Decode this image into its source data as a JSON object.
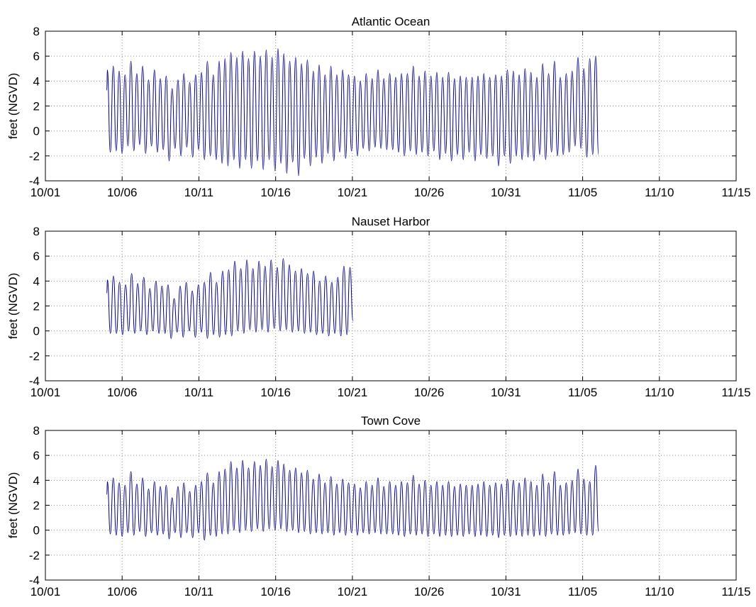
{
  "figure": {
    "background": "#ffffff",
    "line_color": "#000080",
    "grid_color": "#8c8c8c"
  },
  "chart_data": [
    {
      "type": "line",
      "title": "Atlantic Ocean",
      "xlabel": "",
      "ylabel": "feet (NGVD)",
      "x_ticks": [
        "10/01",
        "10/06",
        "10/11",
        "10/16",
        "10/21",
        "10/26",
        "10/31",
        "11/05",
        "11/10",
        "11/15"
      ],
      "y_ticks": [
        "8",
        "6",
        "4",
        "2",
        "0",
        "-2",
        "-4"
      ],
      "xlim": [
        "10/01",
        "11/15"
      ],
      "ylim": [
        -4,
        8
      ],
      "grid": true,
      "legend": "none",
      "series": [
        {
          "x_start": "10/05 00:00",
          "x_end": "11/06 00:00",
          "tide_period_hours": 12.42,
          "highs": [
            4.9,
            5.2,
            4.8,
            4.5,
            5.6,
            4.6,
            5.2,
            4.1,
            4.9,
            4.2,
            4.4,
            3.4,
            4.1,
            4.6,
            3.9,
            4.5,
            4.7,
            5.6,
            4.5,
            5.6,
            5.8,
            6.3,
            5.9,
            6.4,
            5.8,
            6.4,
            6.0,
            6.5,
            5.9,
            6.6,
            6.2,
            5.6,
            5.9,
            5.4,
            5.7,
            4.8,
            5.3,
            4.5,
            5.2,
            4.5,
            4.9,
            4.5,
            4.4,
            4.0,
            4.6,
            4.2,
            4.9,
            4.2,
            4.6,
            4.3,
            4.6,
            4.6,
            5.2,
            4.4,
            4.8,
            4.4,
            4.7,
            4.3,
            4.7,
            4.2,
            4.4,
            4.3,
            4.3,
            4.4,
            4.6,
            4.3,
            4.5,
            4.4,
            4.9,
            4.8,
            4.5,
            5.0,
            4.7,
            4.3,
            5.4,
            4.6,
            5.6,
            4.3,
            4.6,
            4.8,
            5.9,
            5.0,
            5.8,
            6.0
          ],
          "lows": [
            -1.7,
            -1.6,
            -1.8,
            -1.2,
            -1.6,
            -1.1,
            -1.8,
            -1.2,
            -1.7,
            -1.5,
            -2.4,
            -1.4,
            -2.0,
            -1.3,
            -2.1,
            -1.5,
            -2.3,
            -2.0,
            -2.3,
            -2.6,
            -2.8,
            -2.3,
            -3.0,
            -2.3,
            -3.0,
            -2.4,
            -3.1,
            -2.3,
            -3.2,
            -2.6,
            -3.4,
            -2.5,
            -3.6,
            -2.2,
            -2.8,
            -2.1,
            -2.6,
            -1.8,
            -2.4,
            -1.7,
            -2.2,
            -1.6,
            -2.0,
            -1.4,
            -1.6,
            -1.3,
            -1.4,
            -1.5,
            -1.5,
            -1.7,
            -2.0,
            -1.6,
            -1.9,
            -1.7,
            -2.0,
            -1.6,
            -2.3,
            -1.8,
            -2.4,
            -1.9,
            -2.3,
            -1.7,
            -2.4,
            -1.9,
            -2.2,
            -2.0,
            -2.8,
            -2.0,
            -2.6,
            -2.0,
            -2.3,
            -2.1,
            -2.4,
            -1.9,
            -2.3,
            -1.7,
            -2.0,
            -1.9,
            -1.7,
            -1.2,
            -1.4,
            -2.1,
            -1.9,
            -1.9
          ]
        }
      ]
    },
    {
      "type": "line",
      "title": "Nauset Harbor",
      "xlabel": "",
      "ylabel": "feet (NGVD)",
      "x_ticks": [
        "10/01",
        "10/06",
        "10/11",
        "10/16",
        "10/21",
        "10/26",
        "10/31",
        "11/05",
        "11/10",
        "11/15"
      ],
      "y_ticks": [
        "8",
        "6",
        "4",
        "2",
        "0",
        "-2",
        "-4"
      ],
      "xlim": [
        "10/01",
        "11/15"
      ],
      "ylim": [
        -4,
        8
      ],
      "grid": true,
      "legend": "none",
      "series": [
        {
          "x_start": "10/05 00:00",
          "x_end": "10/21 00:00",
          "tide_period_hours": 12.42,
          "highs": [
            4.1,
            4.4,
            3.9,
            3.7,
            4.6,
            3.8,
            4.3,
            3.4,
            4.0,
            3.6,
            3.7,
            2.6,
            3.6,
            3.9,
            3.2,
            3.7,
            3.9,
            4.7,
            3.9,
            4.8,
            4.9,
            5.6,
            5.0,
            5.7,
            5.0,
            5.6,
            5.2,
            5.7,
            5.1,
            5.8,
            5.3,
            4.8,
            5.0,
            4.6,
            4.8,
            4.0,
            4.4,
            3.9,
            4.3,
            5.2,
            5.1
          ],
          "lows": [
            -0.2,
            -0.2,
            -0.3,
            0.0,
            -0.2,
            0.0,
            -0.3,
            0.0,
            -0.2,
            -0.2,
            -0.6,
            -0.1,
            -0.5,
            0.0,
            -0.5,
            -0.1,
            -0.6,
            -0.3,
            -0.5,
            -0.3,
            -0.4,
            0.0,
            -0.2,
            0.1,
            -0.1,
            0.1,
            -0.1,
            0.2,
            0.0,
            0.1,
            -0.1,
            0.0,
            -0.2,
            -0.1,
            -0.3,
            -0.2,
            -0.4,
            -0.2,
            -0.4,
            -0.3,
            0.8
          ]
        }
      ]
    },
    {
      "type": "line",
      "title": "Town Cove",
      "xlabel": "",
      "ylabel": "feet (NGVD)",
      "x_ticks": [
        "10/01",
        "10/06",
        "10/11",
        "10/16",
        "10/21",
        "10/26",
        "10/31",
        "11/05",
        "11/10",
        "11/15"
      ],
      "y_ticks": [
        "8",
        "6",
        "4",
        "2",
        "0",
        "-2",
        "-4"
      ],
      "xlim": [
        "10/01",
        "11/15"
      ],
      "ylim": [
        -4,
        8
      ],
      "grid": true,
      "legend": "none",
      "series": [
        {
          "x_start": "10/05 00:00",
          "x_end": "11/06 00:00",
          "tide_period_hours": 12.42,
          "highs": [
            3.9,
            4.2,
            3.8,
            3.6,
            4.7,
            3.7,
            4.2,
            3.3,
            3.9,
            3.5,
            3.6,
            2.6,
            3.5,
            3.8,
            3.1,
            3.6,
            3.9,
            4.6,
            3.8,
            4.7,
            4.9,
            5.5,
            5.0,
            5.6,
            5.0,
            5.5,
            5.2,
            5.7,
            5.1,
            5.6,
            5.3,
            4.8,
            5.0,
            4.6,
            4.8,
            4.1,
            4.5,
            3.8,
            4.3,
            3.7,
            4.1,
            3.8,
            3.7,
            3.4,
            3.9,
            3.6,
            4.2,
            3.5,
            3.9,
            3.6,
            3.9,
            3.8,
            4.4,
            3.7,
            4.0,
            3.6,
            3.9,
            3.6,
            3.9,
            3.5,
            3.7,
            3.6,
            3.6,
            3.7,
            3.9,
            3.6,
            3.8,
            3.7,
            4.1,
            4.0,
            3.8,
            4.2,
            3.9,
            3.6,
            4.5,
            3.8,
            4.7,
            3.6,
            3.8,
            4.0,
            4.9,
            4.1,
            3.9,
            5.2
          ],
          "lows": [
            -0.3,
            -0.4,
            -0.5,
            -0.2,
            -0.4,
            -0.1,
            -0.5,
            -0.2,
            -0.4,
            -0.3,
            -0.7,
            -0.2,
            -0.6,
            -0.2,
            -0.6,
            -0.2,
            -0.8,
            -0.4,
            -0.5,
            -0.3,
            -0.3,
            0.0,
            -0.2,
            0.0,
            -0.1,
            0.1,
            -0.1,
            0.1,
            0.0,
            0.1,
            -0.1,
            0.0,
            -0.2,
            -0.1,
            -0.3,
            -0.2,
            -0.3,
            -0.2,
            -0.4,
            -0.2,
            -0.4,
            -0.2,
            -0.4,
            -0.2,
            -0.3,
            -0.2,
            -0.3,
            -0.3,
            -0.3,
            -0.4,
            -0.5,
            -0.3,
            -0.4,
            -0.3,
            -0.5,
            -0.3,
            -0.5,
            -0.4,
            -0.5,
            -0.4,
            -0.5,
            -0.3,
            -0.5,
            -0.4,
            -0.5,
            -0.4,
            -0.6,
            -0.4,
            -0.5,
            -0.4,
            -0.5,
            -0.4,
            -0.5,
            -0.4,
            -0.5,
            -0.3,
            -0.4,
            -0.4,
            -0.3,
            -0.2,
            -0.3,
            -0.4,
            -0.4,
            -0.1
          ]
        }
      ]
    }
  ]
}
